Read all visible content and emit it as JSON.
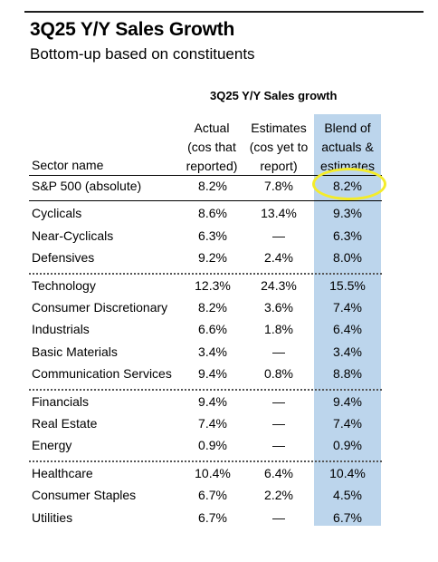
{
  "title": "3Q25 Y/Y Sales Growth",
  "subtitle": "Bottom-up based on constituents",
  "chart_data": {
    "type": "table",
    "title": "3Q25 Y/Y Sales growth",
    "columns": [
      {
        "key": "sector",
        "label_lines": [
          "Sector name"
        ]
      },
      {
        "key": "actual",
        "label_lines": [
          "Actual",
          "(cos that",
          "reported)"
        ]
      },
      {
        "key": "estimates",
        "label_lines": [
          "Estimates",
          "(cos yet to",
          "report)"
        ]
      },
      {
        "key": "blend",
        "label_lines": [
          "Blend of",
          "actuals &",
          "estimates"
        ]
      }
    ],
    "groups": [
      {
        "rows": [
          {
            "sector": "S&P 500 (absolute)",
            "actual": "8.2%",
            "estimates": "7.8%",
            "blend": "8.2%"
          }
        ]
      },
      {
        "rows": [
          {
            "sector": "Cyclicals",
            "actual": "8.6%",
            "estimates": "13.4%",
            "blend": "9.3%"
          },
          {
            "sector": "Near-Cyclicals",
            "actual": "6.3%",
            "estimates": "—",
            "blend": "6.3%"
          },
          {
            "sector": "Defensives",
            "actual": "9.2%",
            "estimates": "2.4%",
            "blend": "8.0%"
          }
        ]
      },
      {
        "rows": [
          {
            "sector": "Technology",
            "actual": "12.3%",
            "estimates": "24.3%",
            "blend": "15.5%"
          },
          {
            "sector": "Consumer Discretionary",
            "actual": "8.2%",
            "estimates": "3.6%",
            "blend": "7.4%"
          },
          {
            "sector": "Industrials",
            "actual": "6.6%",
            "estimates": "1.8%",
            "blend": "6.4%"
          },
          {
            "sector": "Basic Materials",
            "actual": "3.4%",
            "estimates": "—",
            "blend": "3.4%"
          },
          {
            "sector": "Communication Services",
            "actual": "9.4%",
            "estimates": "0.8%",
            "blend": "8.8%"
          }
        ]
      },
      {
        "rows": [
          {
            "sector": "Financials",
            "actual": "9.4%",
            "estimates": "—",
            "blend": "9.4%"
          },
          {
            "sector": "Real Estate",
            "actual": "7.4%",
            "estimates": "—",
            "blend": "7.4%"
          },
          {
            "sector": "Energy",
            "actual": "0.9%",
            "estimates": "—",
            "blend": "0.9%"
          }
        ]
      },
      {
        "rows": [
          {
            "sector": "Healthcare",
            "actual": "10.4%",
            "estimates": "6.4%",
            "blend": "10.4%"
          },
          {
            "sector": "Consumer Staples",
            "actual": "6.7%",
            "estimates": "2.2%",
            "blend": "4.5%"
          },
          {
            "sector": "Utilities",
            "actual": "6.7%",
            "estimates": "—",
            "blend": "6.7%"
          }
        ]
      }
    ],
    "highlighted_cell": {
      "row": "S&P 500 (absolute)",
      "column": "blend"
    }
  },
  "colors": {
    "blend_column_fill": "#bcd5ec",
    "highlight_ring": "#f4ec2a"
  }
}
